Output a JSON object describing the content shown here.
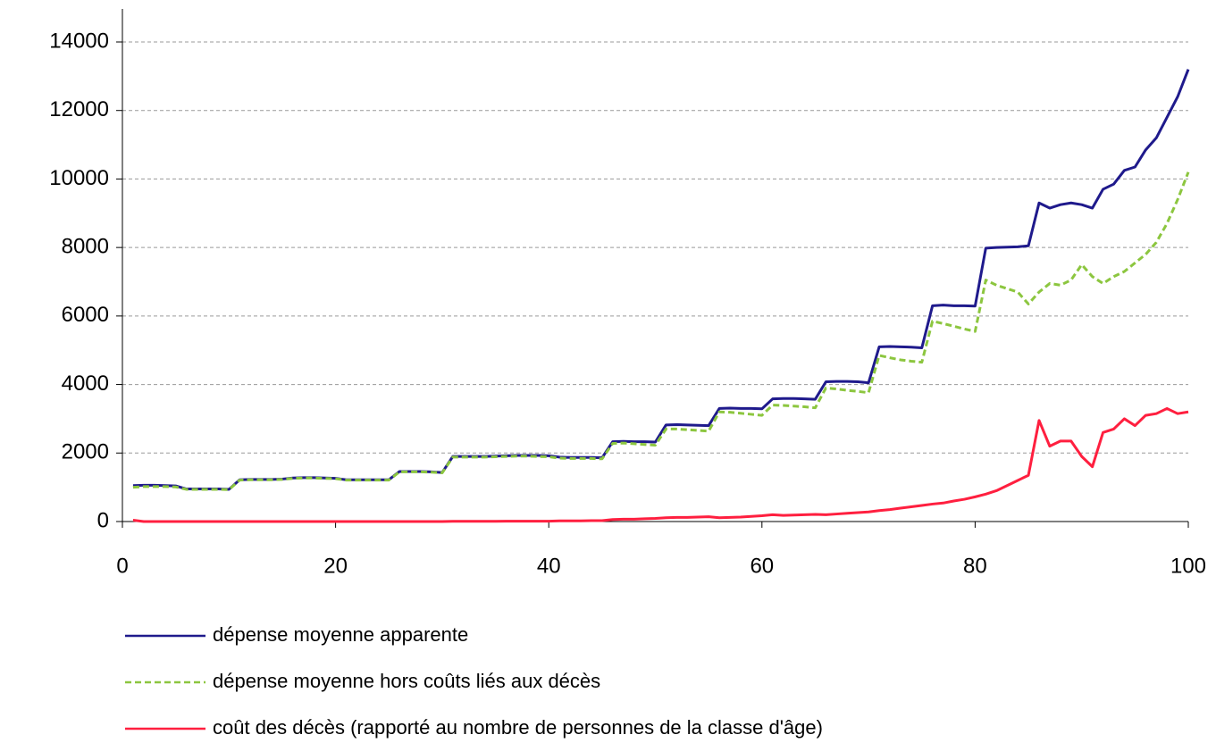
{
  "chart_data": {
    "type": "line",
    "x": [
      1,
      2,
      3,
      4,
      5,
      6,
      7,
      8,
      9,
      10,
      11,
      12,
      13,
      14,
      15,
      16,
      17,
      18,
      19,
      20,
      21,
      22,
      23,
      24,
      25,
      26,
      27,
      28,
      29,
      30,
      31,
      32,
      33,
      34,
      35,
      36,
      37,
      38,
      39,
      40,
      41,
      42,
      43,
      44,
      45,
      46,
      47,
      48,
      49,
      50,
      51,
      52,
      53,
      54,
      55,
      56,
      57,
      58,
      59,
      60,
      61,
      62,
      63,
      64,
      65,
      66,
      67,
      68,
      69,
      70,
      71,
      72,
      73,
      74,
      75,
      76,
      77,
      78,
      79,
      80,
      81,
      82,
      83,
      84,
      85,
      86,
      87,
      88,
      89,
      90,
      91,
      92,
      93,
      94,
      95,
      96,
      97,
      98,
      99,
      100
    ],
    "series": [
      {
        "name": "dépense moyenne apparente",
        "color": "#1f1a8c",
        "dash": false,
        "values": [
          1050,
          1060,
          1060,
          1050,
          1040,
          950,
          950,
          950,
          950,
          940,
          1220,
          1230,
          1230,
          1230,
          1240,
          1270,
          1280,
          1280,
          1270,
          1260,
          1220,
          1220,
          1220,
          1220,
          1220,
          1460,
          1460,
          1460,
          1450,
          1430,
          1900,
          1900,
          1900,
          1900,
          1910,
          1920,
          1930,
          1930,
          1930,
          1920,
          1880,
          1870,
          1870,
          1870,
          1860,
          2330,
          2340,
          2330,
          2330,
          2320,
          2820,
          2830,
          2820,
          2810,
          2800,
          3300,
          3310,
          3300,
          3300,
          3290,
          3580,
          3590,
          3590,
          3580,
          3570,
          4080,
          4090,
          4090,
          4080,
          4050,
          5100,
          5110,
          5100,
          5090,
          5070,
          6300,
          6320,
          6300,
          6300,
          6290,
          7980,
          8000,
          8010,
          8020,
          8050,
          9300,
          9150,
          9250,
          9300,
          9250,
          9150,
          9700,
          9850,
          10250,
          10350,
          10850,
          11200,
          11800,
          12400,
          13200
        ]
      },
      {
        "name": "dépense moyenne hors coûts liés aux décès",
        "color": "#8cc63f",
        "dash": true,
        "values": [
          1000,
          1020,
          1020,
          1020,
          1010,
          940,
          940,
          940,
          940,
          930,
          1210,
          1220,
          1220,
          1220,
          1230,
          1260,
          1270,
          1270,
          1260,
          1250,
          1210,
          1210,
          1210,
          1210,
          1210,
          1450,
          1450,
          1450,
          1440,
          1420,
          1880,
          1880,
          1880,
          1880,
          1890,
          1900,
          1910,
          1910,
          1900,
          1890,
          1850,
          1840,
          1840,
          1840,
          1830,
          2280,
          2290,
          2270,
          2250,
          2230,
          2700,
          2700,
          2680,
          2660,
          2640,
          3200,
          3190,
          3160,
          3130,
          3100,
          3400,
          3390,
          3370,
          3350,
          3320,
          3900,
          3870,
          3830,
          3800,
          3760,
          4850,
          4780,
          4720,
          4680,
          4650,
          5850,
          5780,
          5700,
          5620,
          5550,
          7050,
          6900,
          6800,
          6700,
          6350,
          6700,
          6950,
          6900,
          7050,
          7500,
          7150,
          6950,
          7150,
          7300,
          7550,
          7800,
          8150,
          8700,
          9400,
          10200
        ]
      },
      {
        "name": "coût des décès (rapporté au  nombre de personnes de la classe d'âge)",
        "color": "#ff1f3f",
        "dash": false,
        "values": [
          40,
          0,
          0,
          0,
          0,
          0,
          0,
          0,
          0,
          0,
          0,
          0,
          0,
          0,
          0,
          0,
          0,
          0,
          0,
          0,
          0,
          0,
          0,
          0,
          0,
          0,
          0,
          0,
          0,
          0,
          5,
          5,
          5,
          5,
          5,
          10,
          10,
          10,
          10,
          10,
          20,
          20,
          20,
          25,
          25,
          60,
          70,
          70,
          80,
          90,
          110,
          120,
          120,
          130,
          140,
          110,
          120,
          130,
          150,
          170,
          200,
          180,
          190,
          200,
          210,
          200,
          220,
          240,
          260,
          280,
          320,
          350,
          390,
          430,
          470,
          510,
          540,
          600,
          650,
          720,
          800,
          900,
          1050,
          1200,
          1350,
          2950,
          2200,
          2350,
          2350,
          1900,
          1600,
          2600,
          2700,
          3000,
          2800,
          3100,
          3150,
          3300,
          3150,
          3200
        ]
      }
    ],
    "xlim": [
      0,
      100
    ],
    "xticks": [
      0,
      20,
      40,
      60,
      80,
      100
    ],
    "ylim": [
      0,
      14000
    ],
    "yticks": [
      0,
      2000,
      4000,
      6000,
      8000,
      10000,
      12000,
      14000
    ],
    "grid": true,
    "legend": "bottom"
  }
}
